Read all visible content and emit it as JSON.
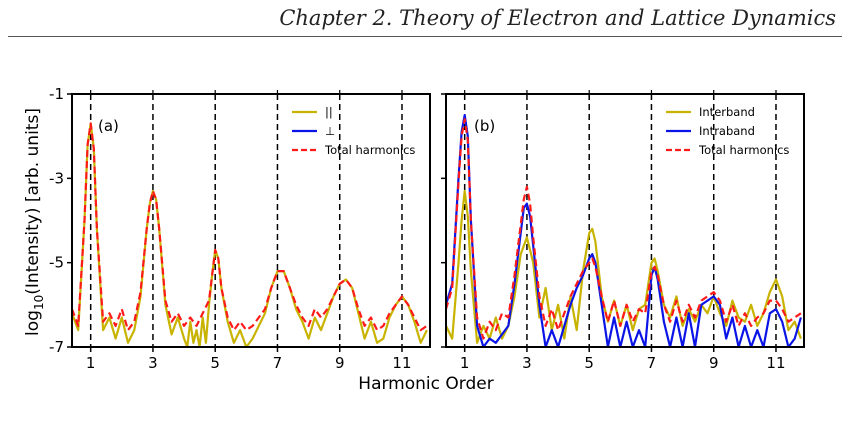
{
  "page": {
    "header_title": "Chapter 2. Theory of Electron and Lattice Dynamics"
  },
  "colors": {
    "parallel": "#c8b400",
    "perpendicular": "#0a14e6",
    "interband": "#c8b400",
    "intraband": "#0a14e6",
    "total": "#ff1a1a"
  },
  "chart_data": [
    {
      "type": "line",
      "panel_label": "(a)",
      "title": "",
      "xlabel": "Harmonic Order",
      "ylabel": "log10(Intensity) [arb. units]",
      "xlim": [
        0.4,
        11.9
      ],
      "ylim": [
        -7,
        -1
      ],
      "x_ticks": [
        1,
        3,
        5,
        7,
        9,
        11
      ],
      "x_tick_labels": [
        "1",
        "3",
        "5",
        "7",
        "9",
        "11"
      ],
      "y_ticks": [
        -1,
        -3,
        -5,
        -7
      ],
      "y_tick_labels": [
        "-1",
        "-3",
        "-5",
        "-7"
      ],
      "vlines_dashed": [
        1,
        3,
        5,
        7,
        9,
        11
      ],
      "legend_position": "top-right",
      "series": [
        {
          "name": "||",
          "color_key": "parallel",
          "style": "solid",
          "x": [
            0.4,
            0.6,
            0.8,
            0.9,
            1.0,
            1.1,
            1.2,
            1.4,
            1.6,
            1.8,
            2.0,
            2.2,
            2.4,
            2.6,
            2.8,
            2.9,
            3.0,
            3.1,
            3.2,
            3.4,
            3.6,
            3.8,
            4.0,
            4.1,
            4.2,
            4.3,
            4.4,
            4.5,
            4.6,
            4.7,
            4.8,
            4.9,
            5.0,
            5.1,
            5.2,
            5.4,
            5.6,
            5.8,
            6.0,
            6.2,
            6.4,
            6.6,
            6.8,
            7.0,
            7.2,
            7.4,
            7.6,
            7.8,
            8.0,
            8.2,
            8.4,
            8.6,
            8.8,
            9.0,
            9.2,
            9.4,
            9.6,
            9.8,
            10.0,
            10.2,
            10.4,
            10.6,
            10.8,
            11.0,
            11.2,
            11.4,
            11.6,
            11.8
          ],
          "y": [
            -6.2,
            -6.6,
            -4.0,
            -2.2,
            -1.7,
            -2.3,
            -4.2,
            -6.6,
            -6.3,
            -6.8,
            -6.3,
            -6.9,
            -6.6,
            -5.8,
            -4.2,
            -3.6,
            -3.3,
            -3.5,
            -4.2,
            -6.0,
            -6.7,
            -6.3,
            -6.8,
            -7.0,
            -6.4,
            -6.9,
            -6.6,
            -7.0,
            -6.3,
            -6.9,
            -6.0,
            -5.3,
            -4.7,
            -4.9,
            -5.6,
            -6.4,
            -6.9,
            -6.6,
            -7.0,
            -6.8,
            -6.5,
            -6.2,
            -5.6,
            -5.2,
            -5.2,
            -5.6,
            -6.1,
            -6.4,
            -6.8,
            -6.3,
            -6.6,
            -6.2,
            -5.8,
            -5.5,
            -5.4,
            -5.6,
            -6.2,
            -6.8,
            -6.4,
            -6.9,
            -6.8,
            -6.3,
            -6.0,
            -5.8,
            -6.0,
            -6.4,
            -6.9,
            -6.6
          ]
        },
        {
          "name": "⊥",
          "color_key": "perpendicular",
          "style": "solid",
          "x": [
            0.4,
            11.9
          ],
          "y": [
            -7.5,
            -7.5
          ]
        },
        {
          "name": "Total harmonics",
          "color_key": "total",
          "style": "dashed",
          "x": [
            0.4,
            0.6,
            0.8,
            0.9,
            1.0,
            1.1,
            1.2,
            1.4,
            1.6,
            1.8,
            2.0,
            2.2,
            2.4,
            2.6,
            2.8,
            2.9,
            3.0,
            3.1,
            3.2,
            3.4,
            3.6,
            3.8,
            4.0,
            4.2,
            4.4,
            4.6,
            4.8,
            4.9,
            5.0,
            5.1,
            5.2,
            5.4,
            5.6,
            5.8,
            6.0,
            6.2,
            6.4,
            6.6,
            6.8,
            7.0,
            7.2,
            7.4,
            7.6,
            7.8,
            8.0,
            8.2,
            8.4,
            8.6,
            8.8,
            9.0,
            9.2,
            9.4,
            9.6,
            9.8,
            10.0,
            10.2,
            10.4,
            10.6,
            10.8,
            11.0,
            11.2,
            11.4,
            11.6,
            11.8
          ],
          "y": [
            -6.1,
            -6.5,
            -4.0,
            -2.2,
            -1.7,
            -2.3,
            -4.2,
            -6.4,
            -6.2,
            -6.5,
            -6.1,
            -6.6,
            -6.4,
            -5.7,
            -4.2,
            -3.6,
            -3.3,
            -3.5,
            -4.2,
            -5.9,
            -6.4,
            -6.2,
            -6.5,
            -6.3,
            -6.5,
            -6.2,
            -5.9,
            -5.3,
            -4.7,
            -4.9,
            -5.6,
            -6.3,
            -6.6,
            -6.4,
            -6.6,
            -6.5,
            -6.3,
            -6.1,
            -5.6,
            -5.2,
            -5.2,
            -5.6,
            -6.0,
            -6.3,
            -6.5,
            -6.1,
            -6.3,
            -6.1,
            -5.8,
            -5.5,
            -5.4,
            -5.6,
            -6.1,
            -6.5,
            -6.3,
            -6.6,
            -6.5,
            -6.2,
            -6.0,
            -5.8,
            -6.0,
            -6.3,
            -6.6,
            -6.5
          ]
        }
      ]
    },
    {
      "type": "line",
      "panel_label": "(b)",
      "title": "",
      "xlabel": "Harmonic Order",
      "ylabel": "",
      "xlim": [
        0.4,
        11.9
      ],
      "ylim": [
        -7,
        -1
      ],
      "x_ticks": [
        1,
        3,
        5,
        7,
        9,
        11
      ],
      "x_tick_labels": [
        "1",
        "3",
        "5",
        "7",
        "9",
        "11"
      ],
      "y_ticks": [
        -1,
        -3,
        -5,
        -7
      ],
      "vlines_dashed": [
        1,
        3,
        5,
        7,
        9,
        11
      ],
      "legend_position": "top-right",
      "series": [
        {
          "name": "Interband",
          "color_key": "interband",
          "style": "solid",
          "x": [
            0.4,
            0.6,
            0.8,
            0.9,
            1.0,
            1.1,
            1.2,
            1.4,
            1.6,
            1.8,
            2.0,
            2.2,
            2.4,
            2.6,
            2.8,
            3.0,
            3.2,
            3.4,
            3.6,
            3.8,
            4.0,
            4.2,
            4.4,
            4.6,
            4.8,
            5.0,
            5.1,
            5.2,
            5.4,
            5.6,
            5.8,
            6.0,
            6.2,
            6.4,
            6.6,
            6.8,
            7.0,
            7.1,
            7.2,
            7.4,
            7.6,
            7.8,
            8.0,
            8.2,
            8.4,
            8.6,
            8.8,
            9.0,
            9.2,
            9.4,
            9.6,
            9.8,
            10.0,
            10.2,
            10.4,
            10.6,
            10.8,
            11.0,
            11.2,
            11.4,
            11.6,
            11.8
          ],
          "y": [
            -6.5,
            -6.8,
            -5.0,
            -4.0,
            -3.3,
            -3.9,
            -5.2,
            -6.9,
            -6.5,
            -6.8,
            -6.3,
            -6.8,
            -6.5,
            -5.8,
            -4.8,
            -4.4,
            -5.0,
            -6.3,
            -5.6,
            -6.6,
            -6.0,
            -6.8,
            -5.8,
            -6.6,
            -5.2,
            -4.3,
            -4.2,
            -4.5,
            -5.8,
            -6.4,
            -5.9,
            -6.5,
            -6.0,
            -6.6,
            -6.1,
            -6.0,
            -5.0,
            -4.9,
            -5.2,
            -6.0,
            -6.3,
            -5.8,
            -6.5,
            -6.1,
            -6.4,
            -6.0,
            -6.2,
            -5.8,
            -6.2,
            -6.5,
            -5.9,
            -6.3,
            -6.4,
            -6.0,
            -6.5,
            -6.2,
            -5.7,
            -5.4,
            -5.8,
            -6.6,
            -6.4,
            -6.8
          ]
        },
        {
          "name": "Intraband",
          "color_key": "intraband",
          "style": "solid",
          "x": [
            0.4,
            0.6,
            0.8,
            0.9,
            1.0,
            1.1,
            1.2,
            1.4,
            1.6,
            1.8,
            2.0,
            2.2,
            2.4,
            2.6,
            2.8,
            2.9,
            3.0,
            3.1,
            3.2,
            3.4,
            3.6,
            3.8,
            4.0,
            4.2,
            4.4,
            4.6,
            4.8,
            5.0,
            5.1,
            5.2,
            5.4,
            5.6,
            5.8,
            6.0,
            6.2,
            6.4,
            6.6,
            6.8,
            7.0,
            7.1,
            7.2,
            7.4,
            7.6,
            7.8,
            8.0,
            8.2,
            8.4,
            8.6,
            8.8,
            9.0,
            9.2,
            9.4,
            9.6,
            9.8,
            10.0,
            10.2,
            10.4,
            10.6,
            10.8,
            11.0,
            11.2,
            11.4,
            11.6,
            11.8
          ],
          "y": [
            -6.0,
            -5.5,
            -3.0,
            -1.9,
            -1.5,
            -2.0,
            -4.0,
            -6.5,
            -7.0,
            -6.8,
            -6.9,
            -6.7,
            -6.5,
            -5.5,
            -4.3,
            -3.7,
            -3.6,
            -3.9,
            -4.6,
            -6.0,
            -7.0,
            -6.6,
            -7.0,
            -6.5,
            -6.0,
            -5.6,
            -5.3,
            -4.9,
            -4.8,
            -5.0,
            -6.0,
            -7.0,
            -6.3,
            -7.0,
            -6.4,
            -7.0,
            -6.6,
            -7.0,
            -5.3,
            -5.1,
            -5.4,
            -6.4,
            -7.0,
            -6.3,
            -7.0,
            -6.2,
            -7.0,
            -6.0,
            -5.9,
            -5.8,
            -6.0,
            -6.8,
            -6.3,
            -7.0,
            -6.5,
            -7.0,
            -6.6,
            -7.0,
            -6.2,
            -6.1,
            -6.4,
            -7.0,
            -6.8,
            -6.3
          ]
        },
        {
          "name": "Total harmonics",
          "color_key": "total",
          "style": "dashed",
          "x": [
            0.4,
            0.6,
            0.8,
            0.9,
            1.0,
            1.1,
            1.2,
            1.4,
            1.6,
            1.8,
            2.0,
            2.2,
            2.4,
            2.6,
            2.8,
            2.9,
            3.0,
            3.1,
            3.2,
            3.4,
            3.6,
            3.8,
            4.0,
            4.2,
            4.4,
            4.6,
            4.8,
            5.0,
            5.1,
            5.2,
            5.4,
            5.6,
            5.8,
            6.0,
            6.2,
            6.4,
            6.6,
            6.8,
            7.0,
            7.1,
            7.2,
            7.4,
            7.6,
            7.8,
            8.0,
            8.2,
            8.4,
            8.6,
            8.8,
            9.0,
            9.2,
            9.4,
            9.6,
            9.8,
            10.0,
            10.2,
            10.4,
            10.6,
            10.8,
            11.0,
            11.2,
            11.4,
            11.6,
            11.8
          ],
          "y": [
            -6.1,
            -5.6,
            -3.1,
            -2.0,
            -1.6,
            -2.1,
            -4.0,
            -6.3,
            -6.8,
            -6.4,
            -6.6,
            -6.2,
            -6.3,
            -5.3,
            -4.1,
            -3.5,
            -3.2,
            -3.6,
            -4.4,
            -5.8,
            -6.5,
            -6.1,
            -6.6,
            -6.2,
            -5.8,
            -5.5,
            -5.2,
            -5.0,
            -4.9,
            -5.1,
            -5.8,
            -6.4,
            -5.9,
            -6.5,
            -6.0,
            -6.4,
            -6.1,
            -6.2,
            -5.2,
            -5.1,
            -5.3,
            -6.0,
            -6.4,
            -5.9,
            -6.4,
            -6.0,
            -6.3,
            -5.9,
            -5.8,
            -5.7,
            -5.9,
            -6.4,
            -6.0,
            -6.5,
            -6.2,
            -6.5,
            -6.3,
            -6.2,
            -5.9,
            -5.9,
            -6.1,
            -6.4,
            -6.3,
            -6.2
          ]
        }
      ]
    }
  ]
}
